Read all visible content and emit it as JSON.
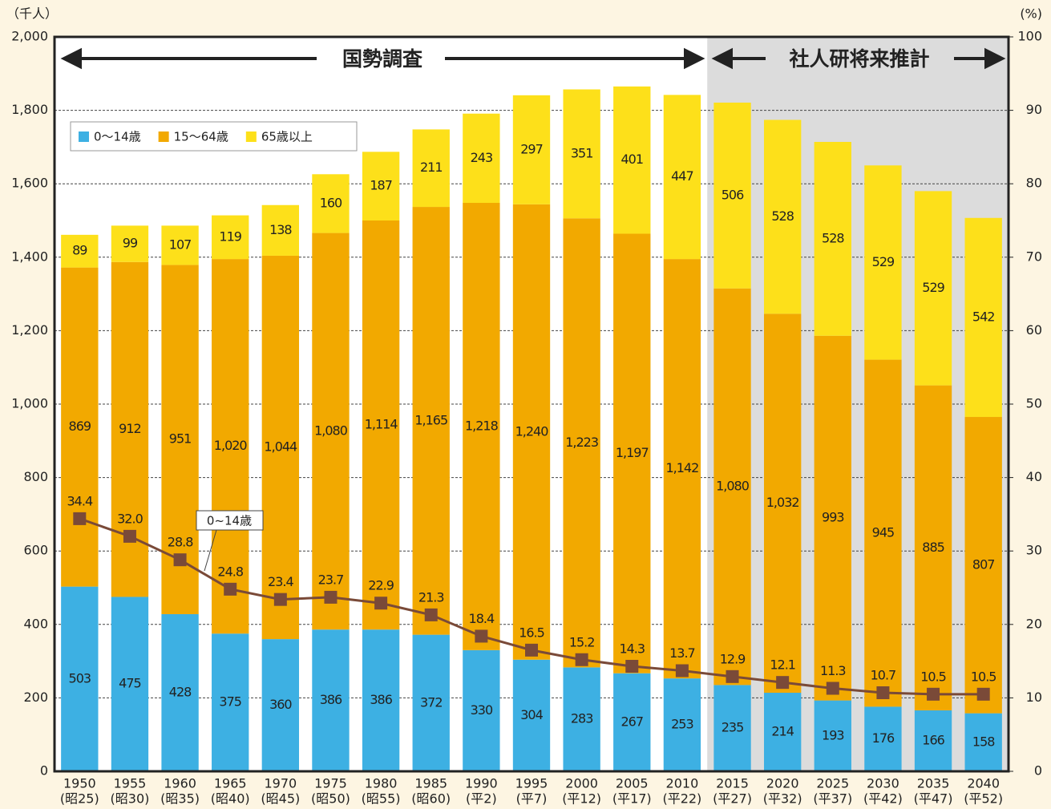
{
  "chart_data": {
    "type": "bar",
    "stacked": true,
    "y_unit": "（千人）",
    "y2_unit": "(%)",
    "categories": [
      "1950",
      "1955",
      "1960",
      "1965",
      "1970",
      "1975",
      "1980",
      "1985",
      "1990",
      "1995",
      "2000",
      "2005",
      "2010",
      "2015",
      "2020",
      "2025",
      "2030",
      "2035",
      "2040"
    ],
    "era_labels": [
      "(昭25)",
      "(昭30)",
      "(昭35)",
      "(昭40)",
      "(昭45)",
      "(昭50)",
      "(昭55)",
      "(昭60)",
      "(平2)",
      "(平7)",
      "(平12)",
      "(平17)",
      "(平22)",
      "(平27)",
      "(平32)",
      "(平37)",
      "(平42)",
      "(平47)",
      "(平52)"
    ],
    "annotations": [
      "国勢調査",
      "社人研将来推計"
    ],
    "series": [
      {
        "name": "0～14歳",
        "color": "#3db0e3",
        "values": [
          503,
          475,
          428,
          375,
          360,
          386,
          386,
          372,
          330,
          304,
          283,
          267,
          253,
          235,
          214,
          193,
          176,
          166,
          158
        ]
      },
      {
        "name": "15～64歳",
        "color": "#f2a900",
        "values": [
          869,
          912,
          951,
          1020,
          1044,
          1080,
          1114,
          1165,
          1218,
          1240,
          1223,
          1197,
          1142,
          1080,
          1032,
          993,
          945,
          885,
          807
        ],
        "value_labels": [
          "869",
          "912",
          "951",
          "1,020",
          "1,044",
          "1,080",
          "1,114",
          "1,165",
          "1,218",
          "1,240",
          "1,223",
          "1,197",
          "1,142",
          "1,080",
          "1,032",
          "993",
          "945",
          "885",
          "807"
        ]
      },
      {
        "name": "65歳以上",
        "color": "#fde01a",
        "values": [
          89,
          99,
          107,
          119,
          138,
          160,
          187,
          211,
          243,
          297,
          351,
          401,
          447,
          506,
          528,
          528,
          529,
          529,
          542
        ]
      },
      {
        "name": "0~14歳",
        "type": "line",
        "axis": "y2",
        "color": "#7a4a38",
        "values": [
          34.4,
          32.0,
          28.8,
          24.8,
          23.4,
          23.7,
          22.9,
          21.3,
          18.4,
          16.5,
          15.2,
          14.3,
          13.7,
          12.9,
          12.1,
          11.3,
          10.7,
          10.5,
          10.5
        ],
        "value_labels": [
          "34.4",
          "32.0",
          "28.8",
          "24.8",
          "23.4",
          "23.7",
          "22.9",
          "21.3",
          "18.4",
          "16.5",
          "15.2",
          "14.3",
          "13.7",
          "12.9",
          "12.1",
          "11.3",
          "10.7",
          "10.5",
          "10.5"
        ]
      }
    ],
    "ylim": [
      0,
      2000
    ],
    "yticks": [
      0,
      200,
      400,
      600,
      800,
      {
        "value": 1000,
        "label": "1,000"
      },
      {
        "value": 1200,
        "label": "1,200"
      },
      {
        "value": 1400,
        "label": "1,400"
      },
      {
        "value": 1600,
        "label": "1,600"
      },
      {
        "value": 1800,
        "label": "1,800"
      },
      {
        "value": 2000,
        "label": "2,000"
      }
    ],
    "y2lim": [
      0,
      100
    ],
    "y2ticks": [
      0,
      10,
      20,
      30,
      40,
      50,
      60,
      70,
      80,
      90,
      100
    ],
    "grid": true,
    "legend": "upper left"
  }
}
